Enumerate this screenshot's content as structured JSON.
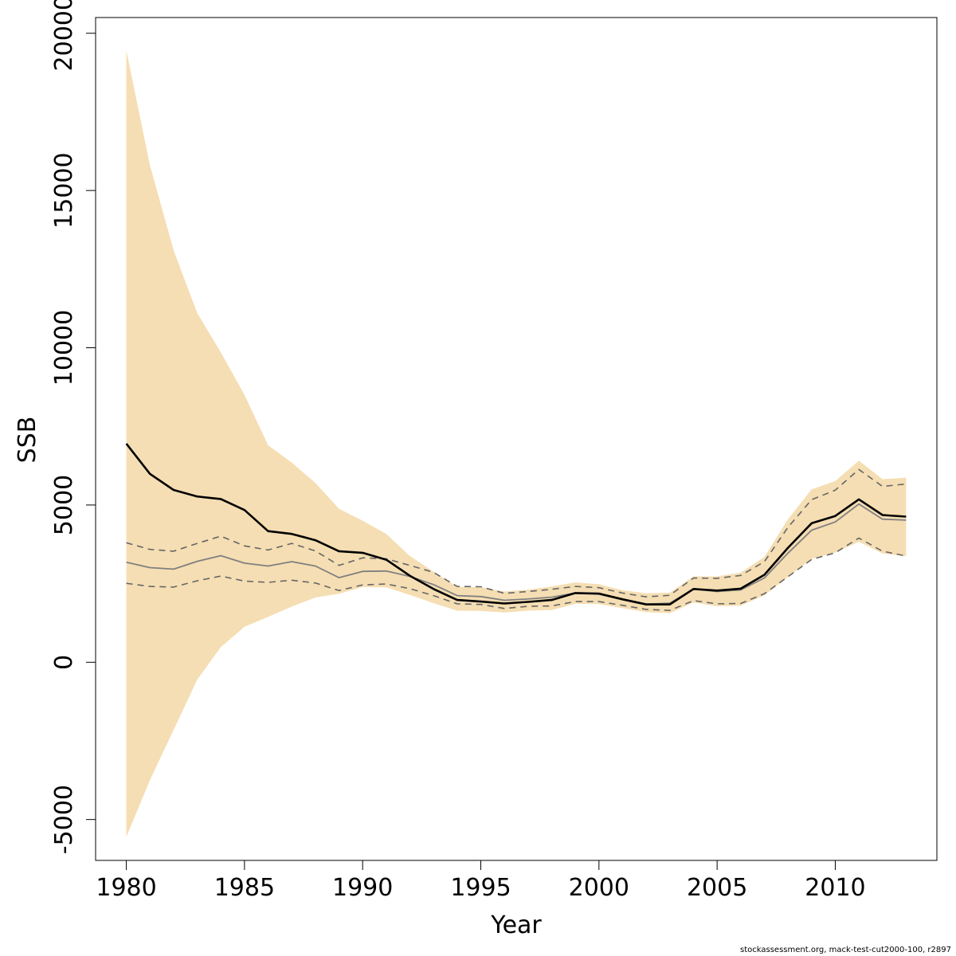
{
  "footer": {
    "source": "stockassessment.org, mack-test-cut2000-100, r2897"
  },
  "colors": {
    "band": "#f5deb3",
    "main_line": "#000000",
    "median_line": "#808080",
    "dashed_line": "#666666",
    "axis": "#000000"
  },
  "chart_data": {
    "type": "line",
    "title": "",
    "xlabel": "Year",
    "ylabel": "SSB",
    "xlim": [
      1978.7,
      2014.3
    ],
    "ylim": [
      -6300,
      20500
    ],
    "x_ticks": [
      1980,
      1985,
      1990,
      1995,
      2000,
      2005,
      2010
    ],
    "y_ticks": [
      -5000,
      0,
      5000,
      10000,
      15000,
      20000
    ],
    "grid": false,
    "legend": "none",
    "x": [
      1980,
      1981,
      1982,
      1983,
      1984,
      1985,
      1986,
      1987,
      1988,
      1989,
      1990,
      1991,
      1992,
      1993,
      1994,
      1995,
      1996,
      1997,
      1998,
      1999,
      2000,
      2001,
      2002,
      2003,
      2004,
      2005,
      2006,
      2007,
      2008,
      2009,
      2010,
      2011,
      2012,
      2013
    ],
    "band": {
      "upper": [
        19450,
        15800,
        13100,
        11100,
        9850,
        8500,
        6900,
        6350,
        5700,
        4880,
        4500,
        4080,
        3380,
        2880,
        2400,
        2380,
        2250,
        2310,
        2410,
        2540,
        2480,
        2290,
        2190,
        2210,
        2730,
        2730,
        2850,
        3350,
        4550,
        5500,
        5760,
        6410,
        5820,
        5870
      ],
      "lower": [
        -5550,
        -3750,
        -2150,
        -550,
        480,
        1130,
        1440,
        1770,
        2060,
        2180,
        2390,
        2380,
        2140,
        1880,
        1640,
        1630,
        1580,
        1640,
        1660,
        1860,
        1850,
        1720,
        1590,
        1560,
        1900,
        1780,
        1800,
        2130,
        2710,
        3290,
        3490,
        3830,
        3460,
        3370
      ]
    },
    "series": [
      {
        "values": [
          6950,
          5990,
          5480,
          5270,
          5190,
          4840,
          4170,
          4080,
          3880,
          3530,
          3480,
          3260,
          2750,
          2330,
          1980,
          1930,
          1870,
          1920,
          1980,
          2200,
          2180,
          2000,
          1840,
          1840,
          2330,
          2280,
          2340,
          2780,
          3640,
          4420,
          4650,
          5180,
          4680,
          4630
        ]
      },
      {
        "values": [
          3180,
          3010,
          2960,
          3210,
          3390,
          3150,
          3060,
          3200,
          3060,
          2690,
          2890,
          2900,
          2730,
          2470,
          2120,
          2090,
          1970,
          2010,
          2070,
          2200,
          2190,
          2010,
          1850,
          1880,
          2330,
          2250,
          2300,
          2680,
          3470,
          4200,
          4460,
          5030,
          4550,
          4520
        ]
      },
      {
        "values": [
          3800,
          3590,
          3530,
          3780,
          4010,
          3700,
          3570,
          3780,
          3540,
          3080,
          3320,
          3290,
          3080,
          2860,
          2410,
          2400,
          2190,
          2250,
          2320,
          2410,
          2370,
          2200,
          2080,
          2130,
          2680,
          2670,
          2760,
          3200,
          4290,
          5170,
          5470,
          6130,
          5590,
          5670
        ]
      },
      {
        "values": [
          2510,
          2410,
          2390,
          2590,
          2740,
          2580,
          2540,
          2610,
          2520,
          2280,
          2460,
          2490,
          2340,
          2120,
          1860,
          1840,
          1710,
          1780,
          1790,
          1930,
          1930,
          1810,
          1680,
          1650,
          1960,
          1860,
          1870,
          2180,
          2720,
          3270,
          3480,
          3950,
          3530,
          3380
        ]
      }
    ]
  }
}
